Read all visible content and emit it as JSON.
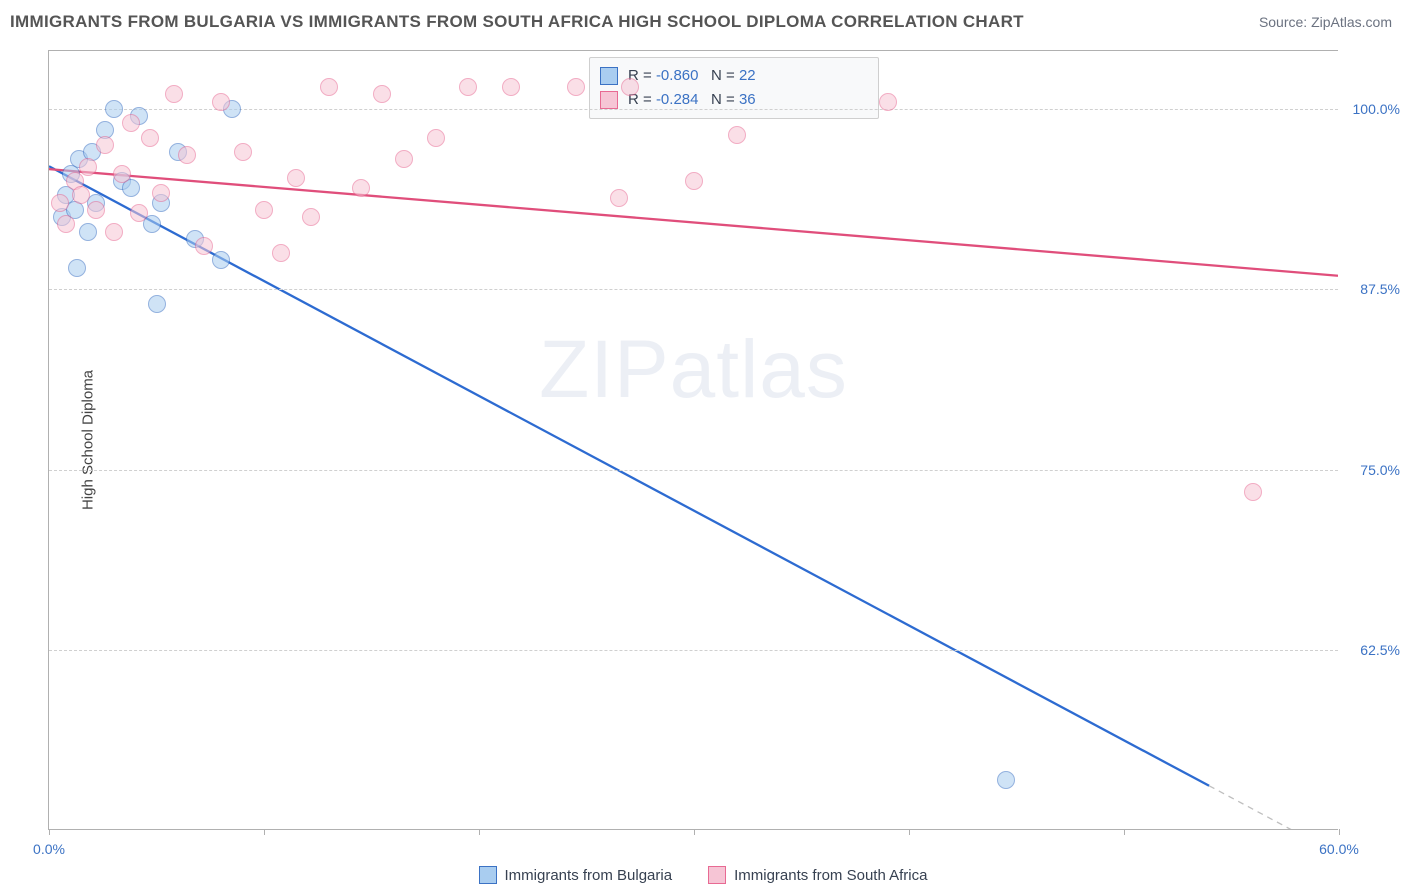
{
  "title": "IMMIGRANTS FROM BULGARIA VS IMMIGRANTS FROM SOUTH AFRICA HIGH SCHOOL DIPLOMA CORRELATION CHART",
  "source_label": "Source:",
  "source_value": "ZipAtlas.com",
  "watermark_a": "ZIP",
  "watermark_b": "atlas",
  "y_axis_label": "High School Diploma",
  "chart": {
    "type": "scatter",
    "background_color": "#ffffff",
    "grid_color": "#d0d0d0",
    "border_color": "#b0b0b0",
    "xlim": [
      0,
      60
    ],
    "ylim": [
      50,
      104
    ],
    "y_ticks": [
      62.5,
      75.0,
      87.5,
      100.0
    ],
    "y_tick_labels": [
      "62.5%",
      "75.0%",
      "87.5%",
      "100.0%"
    ],
    "x_ticks": [
      0,
      10,
      20,
      30,
      40,
      50,
      60
    ],
    "x_tick_labels": [
      "0.0%",
      "",
      "",
      "",
      "",
      "",
      "60.0%"
    ],
    "x_label_color": "#3b72c4",
    "y_label_color": "#3b72c4",
    "point_radius": 9,
    "point_opacity": 0.55,
    "series": [
      {
        "name": "Immigrants from Bulgaria",
        "color_fill": "#a9cdf0",
        "color_stroke": "#3b72c4",
        "stats": {
          "R": "-0.860",
          "N": "22"
        },
        "trend": {
          "x1": 0,
          "y1": 96.0,
          "x2": 54,
          "y2": 53.0,
          "color": "#2d6bd1",
          "width": 2.3
        },
        "points": [
          [
            0.6,
            92.5
          ],
          [
            0.8,
            94.0
          ],
          [
            1.0,
            95.5
          ],
          [
            1.2,
            93.0
          ],
          [
            1.4,
            96.5
          ],
          [
            1.8,
            91.5
          ],
          [
            2.0,
            97.0
          ],
          [
            2.2,
            93.5
          ],
          [
            2.6,
            98.5
          ],
          [
            3.0,
            100.0
          ],
          [
            3.4,
            95.0
          ],
          [
            3.8,
            94.5
          ],
          [
            4.2,
            99.5
          ],
          [
            4.8,
            92.0
          ],
          [
            5.2,
            93.5
          ],
          [
            6.0,
            97.0
          ],
          [
            6.8,
            91.0
          ],
          [
            8.5,
            100.0
          ],
          [
            5.0,
            86.5
          ],
          [
            1.3,
            89.0
          ],
          [
            8.0,
            89.5
          ],
          [
            44.5,
            53.5
          ]
        ]
      },
      {
        "name": "Immigrants from South Africa",
        "color_fill": "#f6c5d5",
        "color_stroke": "#e86a93",
        "stats": {
          "R": "-0.284",
          "N": "36"
        },
        "trend": {
          "x1": 0,
          "y1": 95.8,
          "x2": 60,
          "y2": 88.4,
          "color": "#e04e7b",
          "width": 2.3
        },
        "points": [
          [
            0.5,
            93.5
          ],
          [
            0.8,
            92.0
          ],
          [
            1.2,
            95.0
          ],
          [
            1.5,
            94.0
          ],
          [
            1.8,
            96.0
          ],
          [
            2.2,
            93.0
          ],
          [
            2.6,
            97.5
          ],
          [
            3.0,
            91.5
          ],
          [
            3.4,
            95.5
          ],
          [
            3.8,
            99.0
          ],
          [
            4.2,
            92.8
          ],
          [
            4.7,
            98.0
          ],
          [
            5.2,
            94.2
          ],
          [
            5.8,
            101.0
          ],
          [
            6.4,
            96.8
          ],
          [
            7.2,
            90.5
          ],
          [
            8.0,
            100.5
          ],
          [
            9.0,
            97.0
          ],
          [
            10.0,
            93.0
          ],
          [
            10.8,
            90.0
          ],
          [
            11.5,
            95.2
          ],
          [
            12.2,
            92.5
          ],
          [
            13.0,
            101.5
          ],
          [
            14.5,
            94.5
          ],
          [
            15.5,
            101.0
          ],
          [
            16.5,
            96.5
          ],
          [
            18.0,
            98.0
          ],
          [
            19.5,
            101.5
          ],
          [
            21.5,
            101.5
          ],
          [
            24.5,
            101.5
          ],
          [
            27.0,
            101.5
          ],
          [
            26.5,
            93.8
          ],
          [
            30.0,
            95.0
          ],
          [
            32.0,
            98.2
          ],
          [
            56.0,
            73.5
          ],
          [
            39.0,
            100.5
          ]
        ]
      }
    ]
  },
  "stat_box": {
    "r_label": "R =",
    "n_label": "N ="
  },
  "legend": {
    "series1": "Immigrants from Bulgaria",
    "series2": "Immigrants from South Africa"
  }
}
